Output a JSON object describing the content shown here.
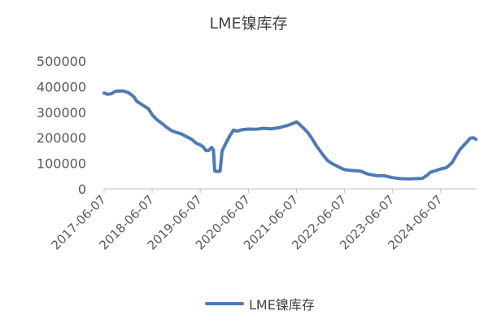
{
  "chart_data": {
    "type": "line",
    "title": "LME镍库存",
    "xlabel": "",
    "ylabel": "",
    "ylim": [
      0,
      500000
    ],
    "yticks": [
      "0",
      "100000",
      "200000",
      "300000",
      "400000",
      "500000"
    ],
    "xticks": [
      "2017-06-07",
      "2018-06-07",
      "2019-06-07",
      "2020-06-07",
      "2021-06-07",
      "2022-06-07",
      "2023-06-07",
      "2024-06-07"
    ],
    "x_range": [
      "2017-06-07",
      "2025-02-28"
    ],
    "grid": false,
    "legend_position": "bottom",
    "color": "#4E7AB5",
    "series": [
      {
        "name": "LME镍库存",
        "points": [
          [
            "2017-06-07",
            375000
          ],
          [
            "2017-07-01",
            370000
          ],
          [
            "2017-08-01",
            372000
          ],
          [
            "2017-09-01",
            382000
          ],
          [
            "2017-10-01",
            383000
          ],
          [
            "2017-11-01",
            383000
          ],
          [
            "2017-12-15",
            375000
          ],
          [
            "2018-01-20",
            360000
          ],
          [
            "2018-02-10",
            343000
          ],
          [
            "2018-03-10",
            333000
          ],
          [
            "2018-04-10",
            323000
          ],
          [
            "2018-05-10",
            313000
          ],
          [
            "2018-06-07",
            290000
          ],
          [
            "2018-07-10",
            272000
          ],
          [
            "2018-08-15",
            258000
          ],
          [
            "2018-09-20",
            243000
          ],
          [
            "2018-10-25",
            230000
          ],
          [
            "2018-12-01",
            222000
          ],
          [
            "2019-01-10",
            216000
          ],
          [
            "2019-02-20",
            205000
          ],
          [
            "2019-04-01",
            195000
          ],
          [
            "2019-05-10",
            178000
          ],
          [
            "2019-06-07",
            172000
          ],
          [
            "2019-07-01",
            163000
          ],
          [
            "2019-07-20",
            150000
          ],
          [
            "2019-08-10",
            150000
          ],
          [
            "2019-09-01",
            162000
          ],
          [
            "2019-09-15",
            152000
          ],
          [
            "2019-09-25",
            70000
          ],
          [
            "2019-10-15",
            68000
          ],
          [
            "2019-11-05",
            70000
          ],
          [
            "2019-11-20",
            148000
          ],
          [
            "2019-12-20",
            180000
          ],
          [
            "2020-01-20",
            210000
          ],
          [
            "2020-02-15",
            230000
          ],
          [
            "2020-03-15",
            226000
          ],
          [
            "2020-04-20",
            232000
          ],
          [
            "2020-06-07",
            234000
          ],
          [
            "2020-08-01",
            233000
          ],
          [
            "2020-10-01",
            237000
          ],
          [
            "2020-12-01",
            235000
          ],
          [
            "2021-02-01",
            240000
          ],
          [
            "2021-04-01",
            248000
          ],
          [
            "2021-05-20",
            258000
          ],
          [
            "2021-06-07",
            262000
          ],
          [
            "2021-07-01",
            252000
          ],
          [
            "2021-08-01",
            237000
          ],
          [
            "2021-09-01",
            220000
          ],
          [
            "2021-10-01",
            198000
          ],
          [
            "2021-11-01",
            172000
          ],
          [
            "2021-12-01",
            150000
          ],
          [
            "2022-01-01",
            128000
          ],
          [
            "2022-02-01",
            110000
          ],
          [
            "2022-03-01",
            100000
          ],
          [
            "2022-04-15",
            88000
          ],
          [
            "2022-06-07",
            75000
          ],
          [
            "2022-08-01",
            72000
          ],
          [
            "2022-10-01",
            70000
          ],
          [
            "2022-12-01",
            58000
          ],
          [
            "2023-02-01",
            52000
          ],
          [
            "2023-04-01",
            52000
          ],
          [
            "2023-06-07",
            44000
          ],
          [
            "2023-08-01",
            40000
          ],
          [
            "2023-10-01",
            39000
          ],
          [
            "2023-12-01",
            40000
          ],
          [
            "2024-01-20",
            41000
          ],
          [
            "2024-02-20",
            52000
          ],
          [
            "2024-03-20",
            65000
          ],
          [
            "2024-04-20",
            70000
          ],
          [
            "2024-06-07",
            78000
          ],
          [
            "2024-07-20",
            83000
          ],
          [
            "2024-09-01",
            103000
          ],
          [
            "2024-10-01",
            130000
          ],
          [
            "2024-11-01",
            155000
          ],
          [
            "2024-12-01",
            172000
          ],
          [
            "2024-12-25",
            185000
          ],
          [
            "2025-01-15",
            198000
          ],
          [
            "2025-02-10",
            200000
          ],
          [
            "2025-02-28",
            194000
          ]
        ]
      }
    ]
  }
}
